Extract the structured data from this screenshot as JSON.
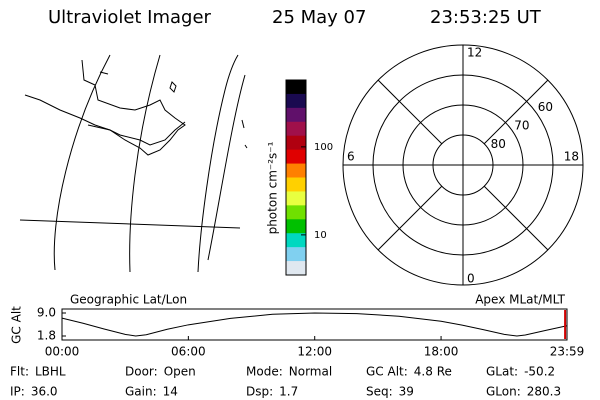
{
  "header": {
    "title": "Ultraviolet Imager",
    "date": "25 May 07",
    "time": "23:53:25 UT"
  },
  "chart_data": [
    {
      "type": "colorbar",
      "label": "photon cm⁻²s⁻¹",
      "log_scale": true,
      "ylim": [
        3.5,
        575
      ],
      "yticks": [
        10,
        100
      ],
      "colors": [
        "#000000",
        "#1a0a50",
        "#60106a",
        "#a0104a",
        "#b00010",
        "#e00000",
        "#ff8000",
        "#ffd000",
        "#e8ff40",
        "#70e000",
        "#00c000",
        "#00d8c0",
        "#80d0f0",
        "#e0e8f0"
      ]
    },
    {
      "type": "polar",
      "rlim": [
        90,
        50
      ],
      "rticks": [
        60,
        70,
        80
      ],
      "thetaticks": [
        0,
        6,
        12,
        18
      ]
    },
    {
      "type": "line",
      "title_left": "Geographic Lat/Lon",
      "title_right": "Apex MLat/MLT",
      "ylabel": "GC Alt",
      "x": [
        0,
        1,
        2,
        3,
        3.5,
        4,
        5,
        6,
        8,
        10,
        12,
        14,
        16,
        18,
        19,
        20,
        21,
        21.6,
        22,
        23,
        23.98
      ],
      "values": [
        7.4,
        5.8,
        4.0,
        2.3,
        1.8,
        2.2,
        3.9,
        5.3,
        7.3,
        8.6,
        9.0,
        8.8,
        8.0,
        6.4,
        5.2,
        3.8,
        2.3,
        1.8,
        2.1,
        3.6,
        5.0
      ],
      "color": "#000000",
      "xlim": [
        0,
        23.98
      ],
      "ylim": [
        1.8,
        9.0
      ],
      "xticks": [
        {
          "value": 0,
          "label": "00:00"
        },
        {
          "value": 6,
          "label": "06:00"
        },
        {
          "value": 12,
          "label": "12:00"
        },
        {
          "value": 18,
          "label": "18:00"
        },
        {
          "value": 23.98,
          "label": "23:59"
        }
      ],
      "yticks": [
        1.8,
        {
          "value": 9.0,
          "label": "9.0"
        }
      ],
      "marker": {
        "x": 23.89,
        "color": "#d00000"
      }
    }
  ],
  "info": {
    "rows": [
      [
        {
          "label": "Flt:",
          "value": "LBHL"
        },
        {
          "label": "Door:",
          "value": "Open"
        },
        {
          "label": "Mode:",
          "value": "Normal"
        },
        {
          "label": "GC Alt:",
          "value": "4.8 Re"
        },
        {
          "label": "GLat:",
          "value": "-50.2"
        }
      ],
      [
        {
          "label": "IP:",
          "value": "36.0"
        },
        {
          "label": "Gain:",
          "value": "14"
        },
        {
          "label": "Dsp:",
          "value": "1.7"
        },
        {
          "label": "Seq:",
          "value": "39"
        },
        {
          "label": "GLon:",
          "value": "280.3"
        }
      ]
    ]
  }
}
